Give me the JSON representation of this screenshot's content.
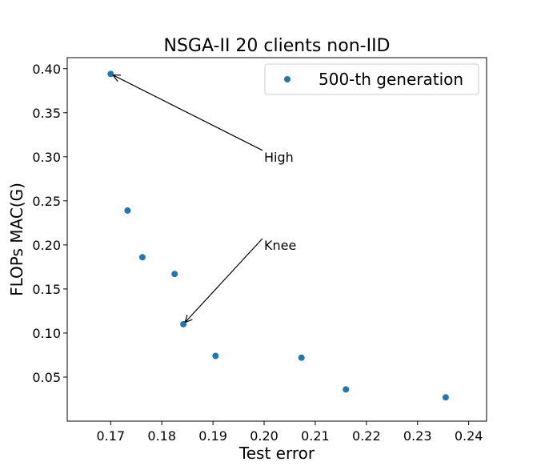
{
  "chart_data": {
    "type": "scatter",
    "title": "NSGA-II 20 clients non-IID",
    "xlabel": "Test error",
    "ylabel": "FLOPs MAC(G)",
    "xlim": [
      0.1615,
      0.2435
    ],
    "ylim": [
      0.0,
      0.4125
    ],
    "xticks": [
      0.17,
      0.18,
      0.19,
      0.2,
      0.21,
      0.22,
      0.23,
      0.24
    ],
    "xtick_labels": [
      "0.17",
      "0.18",
      "0.19",
      "0.20",
      "0.21",
      "0.22",
      "0.23",
      "0.24"
    ],
    "yticks": [
      0.05,
      0.1,
      0.15,
      0.2,
      0.25,
      0.3,
      0.35,
      0.4
    ],
    "ytick_labels": [
      "0.05",
      "0.10",
      "0.15",
      "0.20",
      "0.25",
      "0.30",
      "0.35",
      "0.40"
    ],
    "grid": false,
    "legend_position": "top-right",
    "series": [
      {
        "name": "500-th generation",
        "color": "#1f77b4",
        "points": [
          {
            "x": 0.17,
            "y": 0.394
          },
          {
            "x": 0.1733,
            "y": 0.239
          },
          {
            "x": 0.1762,
            "y": 0.186
          },
          {
            "x": 0.1825,
            "y": 0.167
          },
          {
            "x": 0.1842,
            "y": 0.11
          },
          {
            "x": 0.1905,
            "y": 0.074
          },
          {
            "x": 0.2073,
            "y": 0.072
          },
          {
            "x": 0.216,
            "y": 0.036
          },
          {
            "x": 0.2355,
            "y": 0.027
          }
        ]
      }
    ],
    "annotations": [
      {
        "text": "High",
        "point": {
          "x": 0.17,
          "y": 0.394
        },
        "text_pos": {
          "x": 0.2,
          "y": 0.3
        }
      },
      {
        "text": "Knee",
        "point": {
          "x": 0.1842,
          "y": 0.11
        },
        "text_pos": {
          "x": 0.2,
          "y": 0.2
        }
      }
    ]
  }
}
